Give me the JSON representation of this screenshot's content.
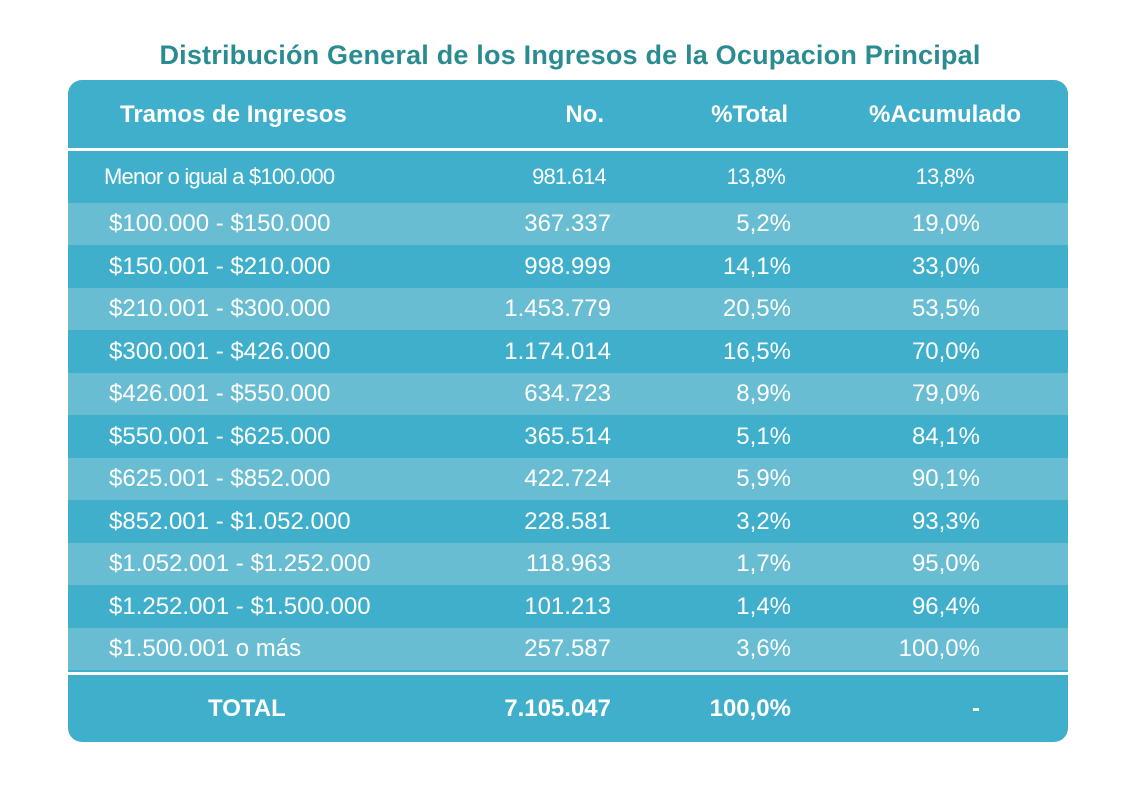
{
  "title": "Distribución General de los Ingresos de la Ocupacion Principal",
  "headers": {
    "range": "Tramos de Ingresos",
    "count": "No.",
    "pct_total": "%Total",
    "pct_cum": "%Acumulado"
  },
  "rows": [
    {
      "range": "Menor o igual a $100.000",
      "count": "981.614",
      "pct_total": "13,8%",
      "pct_cum": "13,8%"
    },
    {
      "range": "$100.000 - $150.000",
      "count": "367.337",
      "pct_total": "5,2%",
      "pct_cum": "19,0%"
    },
    {
      "range": "$150.001 - $210.000",
      "count": "998.999",
      "pct_total": "14,1%",
      "pct_cum": "33,0%"
    },
    {
      "range": "$210.001 - $300.000",
      "count": "1.453.779",
      "pct_total": "20,5%",
      "pct_cum": "53,5%"
    },
    {
      "range": "$300.001 - $426.000",
      "count": "1.174.014",
      "pct_total": "16,5%",
      "pct_cum": "70,0%"
    },
    {
      "range": "$426.001 - $550.000",
      "count": "634.723",
      "pct_total": "8,9%",
      "pct_cum": "79,0%"
    },
    {
      "range": "$550.001 - $625.000",
      "count": "365.514",
      "pct_total": "5,1%",
      "pct_cum": "84,1%"
    },
    {
      "range": "$625.001 - $852.000",
      "count": "422.724",
      "pct_total": "5,9%",
      "pct_cum": "90,1%"
    },
    {
      "range": "$852.001 - $1.052.000",
      "count": "228.581",
      "pct_total": "3,2%",
      "pct_cum": "93,3%"
    },
    {
      "range": "$1.052.001 - $1.252.000",
      "count": "118.963",
      "pct_total": "1,7%",
      "pct_cum": "95,0%"
    },
    {
      "range": "$1.252.001 - $1.500.000",
      "count": "101.213",
      "pct_total": "1,4%",
      "pct_cum": "96,4%"
    },
    {
      "range": "$1.500.001 o más",
      "count": "257.587",
      "pct_total": "3,6%",
      "pct_cum": "100,0%"
    }
  ],
  "total": {
    "range": "TOTAL",
    "count": "7.105.047",
    "pct_total": "100,0%",
    "pct_cum": "-"
  },
  "colors": {
    "title": "#2a8c90",
    "panel": "#3fafcb",
    "stripe": "#68bdd2",
    "text": "#ffffff"
  },
  "chart_data": {
    "type": "table",
    "title": "Distribución General de los Ingresos de la Ocupacion Principal",
    "columns": [
      "Tramos de Ingresos",
      "No.",
      "%Total",
      "%Acumulado"
    ],
    "rows": [
      [
        "Menor o igual a $100.000",
        "981.614",
        "13,8%",
        "13,8%"
      ],
      [
        "$100.000 - $150.000",
        "367.337",
        "5,2%",
        "19,0%"
      ],
      [
        "$150.001 - $210.000",
        "998.999",
        "14,1%",
        "33,0%"
      ],
      [
        "$210.001 - $300.000",
        "1.453.779",
        "20,5%",
        "53,5%"
      ],
      [
        "$300.001 - $426.000",
        "1.174.014",
        "16,5%",
        "70,0%"
      ],
      [
        "$426.001 - $550.000",
        "634.723",
        "8,9%",
        "79,0%"
      ],
      [
        "$550.001 - $625.000",
        "365.514",
        "5,1%",
        "84,1%"
      ],
      [
        "$625.001 - $852.000",
        "422.724",
        "5,9%",
        "90,1%"
      ],
      [
        "$852.001 - $1.052.000",
        "228.581",
        "3,2%",
        "93,3%"
      ],
      [
        "$1.052.001 - $1.252.000",
        "118.963",
        "1,7%",
        "95,0%"
      ],
      [
        "$1.252.001 - $1.500.000",
        "101.213",
        "1,4%",
        "96,4%"
      ],
      [
        "$1.500.001 o más",
        "257.587",
        "3,6%",
        "100,0%"
      ]
    ],
    "total": [
      "TOTAL",
      "7.105.047",
      "100,0%",
      "-"
    ]
  }
}
